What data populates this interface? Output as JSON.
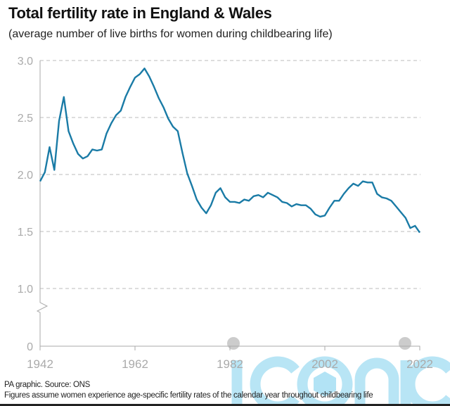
{
  "chart_data": {
    "type": "line",
    "title": "Total fertility rate in England & Wales",
    "subtitle": "(average number of live births for women during childbearing life)",
    "xlabel": "",
    "ylabel": "",
    "xlim": [
      1942,
      2022
    ],
    "ylim": [
      0,
      3.0
    ],
    "y_axis_break": true,
    "grid": true,
    "x_ticks": [
      "1942",
      "1962",
      "1982",
      "2002",
      "2022"
    ],
    "y_ticks": [
      "0",
      "1.0",
      "1.5",
      "2.0",
      "2.5",
      "3.0"
    ],
    "line_color": "#1a7ba6",
    "x": [
      1942,
      1943,
      1944,
      1945,
      1946,
      1947,
      1948,
      1949,
      1950,
      1951,
      1952,
      1953,
      1954,
      1955,
      1956,
      1957,
      1958,
      1959,
      1960,
      1961,
      1962,
      1963,
      1964,
      1965,
      1966,
      1967,
      1968,
      1969,
      1970,
      1971,
      1972,
      1973,
      1974,
      1975,
      1976,
      1977,
      1978,
      1979,
      1980,
      1981,
      1982,
      1983,
      1984,
      1985,
      1986,
      1987,
      1988,
      1989,
      1990,
      1991,
      1992,
      1993,
      1994,
      1995,
      1996,
      1997,
      1998,
      1999,
      2000,
      2001,
      2002,
      2003,
      2004,
      2005,
      2006,
      2007,
      2008,
      2009,
      2010,
      2011,
      2012,
      2013,
      2014,
      2015,
      2016,
      2017,
      2018,
      2019,
      2020,
      2021,
      2022
    ],
    "values": [
      1.94,
      2.02,
      2.24,
      2.04,
      2.47,
      2.68,
      2.38,
      2.27,
      2.18,
      2.14,
      2.16,
      2.22,
      2.21,
      2.22,
      2.36,
      2.45,
      2.52,
      2.56,
      2.68,
      2.77,
      2.85,
      2.88,
      2.93,
      2.86,
      2.77,
      2.67,
      2.59,
      2.49,
      2.42,
      2.38,
      2.19,
      2.01,
      1.9,
      1.78,
      1.71,
      1.66,
      1.73,
      1.84,
      1.88,
      1.8,
      1.76,
      1.76,
      1.75,
      1.78,
      1.77,
      1.81,
      1.82,
      1.8,
      1.84,
      1.82,
      1.8,
      1.76,
      1.75,
      1.72,
      1.74,
      1.73,
      1.73,
      1.7,
      1.65,
      1.63,
      1.64,
      1.71,
      1.77,
      1.77,
      1.83,
      1.88,
      1.92,
      1.9,
      1.94,
      1.93,
      1.93,
      1.83,
      1.8,
      1.79,
      1.77,
      1.72,
      1.67,
      1.62,
      1.53,
      1.55,
      1.49
    ]
  },
  "footer": {
    "source": "PA graphic. Source: ONS",
    "note": "Figures assume women experience age-specific fertility rates of the calendar year throughout childbearing life"
  },
  "watermark": "iconic",
  "colors": {
    "grid": "#bbbbbb",
    "axis_text": "#aaaaaa",
    "watermark": "#7fd0ee"
  }
}
